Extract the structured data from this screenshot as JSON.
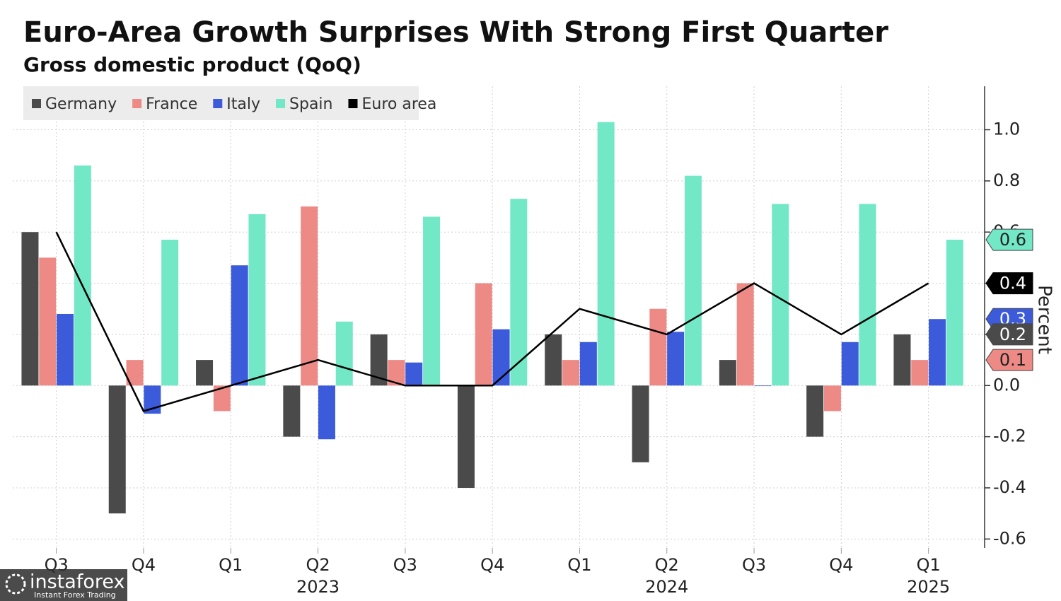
{
  "chart_data": {
    "type": "bar",
    "title": "Euro-Area Growth Surprises With Strong First Quarter",
    "subtitle": "Gross domestic product (QoQ)",
    "y_axis_label": "Percent",
    "categories": [
      "Q3",
      "Q4",
      "Q1",
      "Q2",
      "Q3",
      "Q4",
      "Q1",
      "Q2",
      "Q3",
      "Q4",
      "Q1"
    ],
    "year_labels": [
      null,
      null,
      null,
      "2023",
      null,
      null,
      null,
      "2024",
      null,
      null,
      "2025"
    ],
    "series": [
      {
        "name": "Germany",
        "color": "#4a4a4a",
        "type": "bar",
        "values": [
          0.6,
          -0.5,
          0.1,
          -0.2,
          0.2,
          -0.4,
          0.2,
          -0.3,
          0.1,
          -0.2,
          0.2
        ],
        "end_label": "0.2",
        "label_text_color": "#ffffff"
      },
      {
        "name": "France",
        "color": "#ee8a86",
        "type": "bar",
        "values": [
          0.5,
          0.1,
          -0.1,
          0.7,
          0.1,
          0.4,
          0.1,
          0.3,
          0.4,
          -0.1,
          0.1
        ],
        "end_label": "0.1",
        "label_text_color": "#222222"
      },
      {
        "name": "Italy",
        "color": "#3b5bdb",
        "type": "bar",
        "values": [
          0.28,
          -0.11,
          0.47,
          -0.21,
          0.09,
          0.22,
          0.17,
          0.21,
          0.0,
          0.17,
          0.26
        ],
        "end_label": "0.3",
        "label_text_color": "#ffffff"
      },
      {
        "name": "Spain",
        "color": "#72e8c6",
        "type": "bar",
        "values": [
          0.86,
          0.57,
          0.67,
          0.25,
          0.66,
          0.73,
          1.03,
          0.82,
          0.71,
          0.71,
          0.57
        ],
        "end_label": "0.6",
        "label_text_color": "#222222"
      },
      {
        "name": "Euro area",
        "color": "#000000",
        "type": "line",
        "values": [
          0.6,
          -0.1,
          0.0,
          0.1,
          0.0,
          0.0,
          0.3,
          0.2,
          0.4,
          0.2,
          0.4
        ],
        "end_label": "0.4",
        "label_text_color": "#ffffff"
      }
    ],
    "ylim": [
      -0.635,
      1.17
    ],
    "yticks": [
      -0.6,
      -0.4,
      -0.2,
      {
        "value": 0,
        "label": "0.0"
      },
      0.2,
      0.4,
      0.6,
      0.8,
      {
        "value": 1,
        "label": "1.0"
      }
    ],
    "grid": true,
    "legend": "top-left"
  },
  "watermark": {
    "brand": "instaforex",
    "tagline": "Instant Forex Trading"
  }
}
